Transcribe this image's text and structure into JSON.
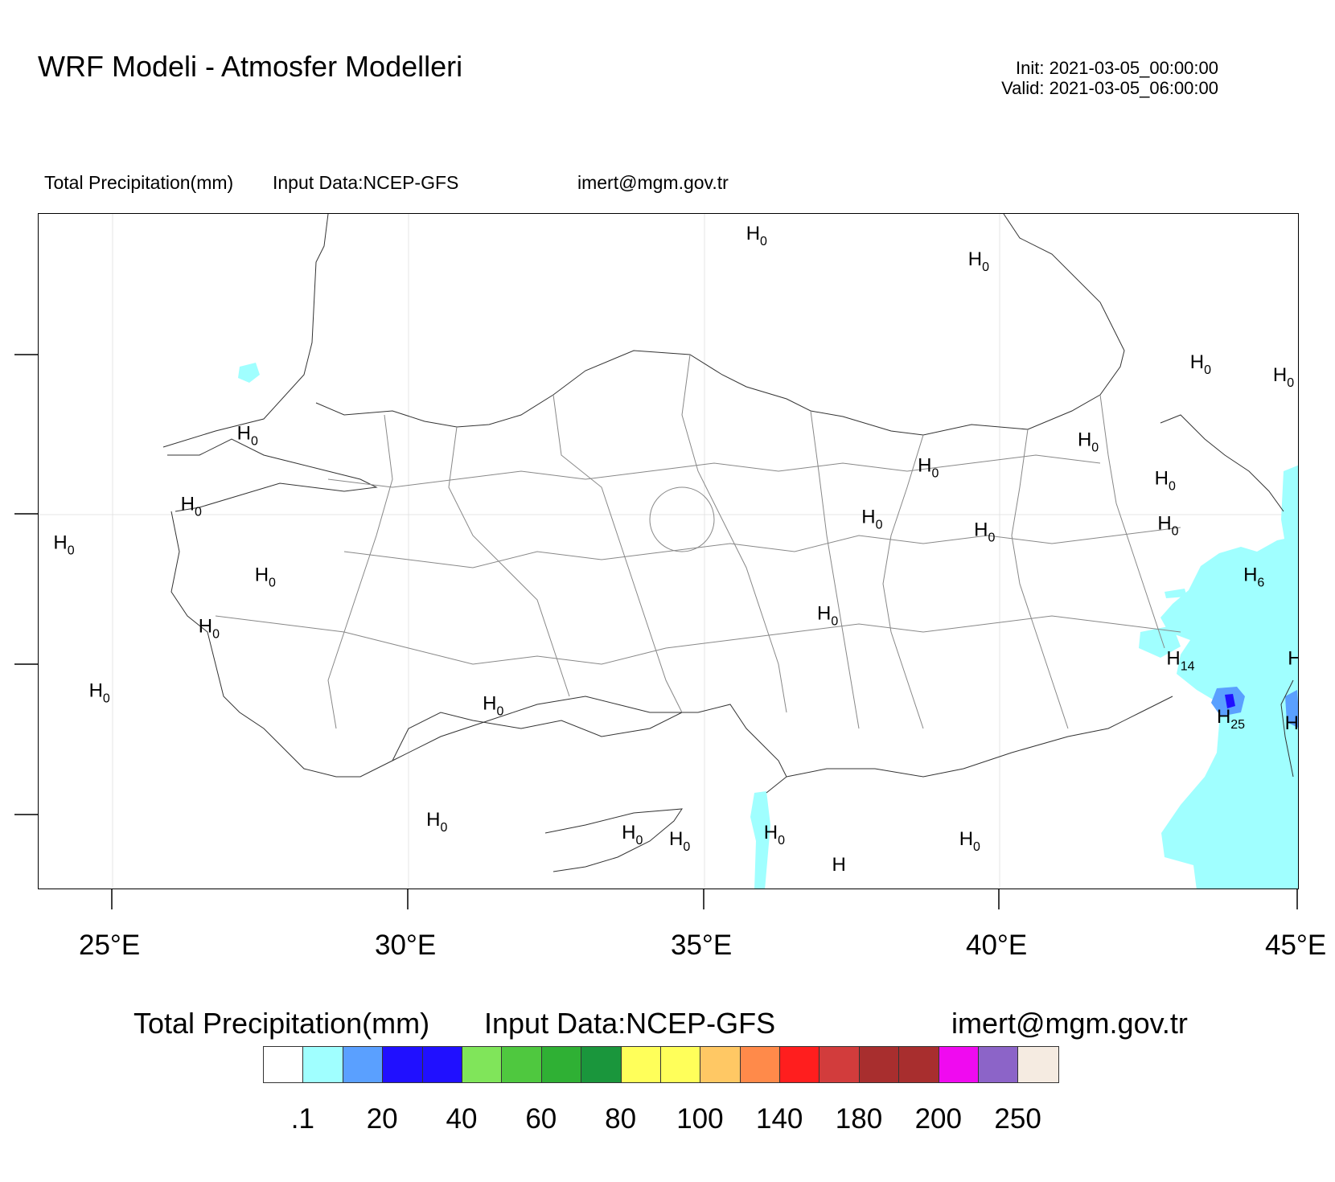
{
  "header": {
    "title": "WRF Modeli - Atmosfer Modelleri",
    "init": "Init: 2021-03-05_00:00:00",
    "valid": "Valid: 2021-03-05_06:00:00"
  },
  "subtitle": {
    "variable": "Total Precipitation(mm)",
    "input": "Input Data:NCEP-GFS",
    "contact": "imert@mgm.gov.tr"
  },
  "map": {
    "longitude_labels": [
      "25°E",
      "30°E",
      "35°E",
      "40°E",
      "45°E"
    ],
    "longitude_values": [
      25,
      30,
      35,
      40,
      45
    ],
    "lon_range": [
      23.75,
      45.05
    ],
    "precip_colors": {
      "light": "#a0ffff",
      "medium": "#5aa0ff",
      "heavy": "#2010ff"
    },
    "max_labels": [
      {
        "lon": 35.7,
        "lat": 43.5,
        "letter": "H",
        "value": "0"
      },
      {
        "lon": 39.45,
        "lat": 43.3,
        "letter": "H",
        "value": "0"
      },
      {
        "lon": 43.2,
        "lat": 42.5,
        "letter": "H",
        "value": "0"
      },
      {
        "lon": 44.6,
        "lat": 42.4,
        "letter": "H",
        "value": "0"
      },
      {
        "lon": 27.1,
        "lat": 41.95,
        "letter": "H",
        "value": "0"
      },
      {
        "lon": 41.3,
        "lat": 41.9,
        "letter": "H",
        "value": "0"
      },
      {
        "lon": 38.6,
        "lat": 41.7,
        "letter": "H",
        "value": "0"
      },
      {
        "lon": 42.6,
        "lat": 41.6,
        "letter": "H",
        "value": "0"
      },
      {
        "lon": 26.15,
        "lat": 41.4,
        "letter": "H",
        "value": "0"
      },
      {
        "lon": 37.65,
        "lat": 41.3,
        "letter": "H",
        "value": "0"
      },
      {
        "lon": 39.55,
        "lat": 41.2,
        "letter": "H",
        "value": "0"
      },
      {
        "lon": 42.65,
        "lat": 41.25,
        "letter": "H",
        "value": "0"
      },
      {
        "lon": 24.0,
        "lat": 41.1,
        "letter": "H",
        "value": "0"
      },
      {
        "lon": 27.4,
        "lat": 40.85,
        "letter": "H",
        "value": "0"
      },
      {
        "lon": 44.1,
        "lat": 40.85,
        "letter": "H",
        "value": "6"
      },
      {
        "lon": 36.9,
        "lat": 40.55,
        "letter": "H",
        "value": "0"
      },
      {
        "lon": 26.45,
        "lat": 40.45,
        "letter": "H",
        "value": "0"
      },
      {
        "lon": 42.8,
        "lat": 40.2,
        "letter": "H",
        "value": "14"
      },
      {
        "lon": 44.85,
        "lat": 40.2,
        "letter": "H",
        "value": ""
      },
      {
        "lon": 24.6,
        "lat": 39.95,
        "letter": "H",
        "value": "0"
      },
      {
        "lon": 31.25,
        "lat": 39.85,
        "letter": "H",
        "value": "0"
      },
      {
        "lon": 43.65,
        "lat": 39.75,
        "letter": "H",
        "value": "25"
      },
      {
        "lon": 44.8,
        "lat": 39.7,
        "letter": "H",
        "value": ""
      },
      {
        "lon": 30.3,
        "lat": 38.95,
        "letter": "H",
        "value": "0"
      },
      {
        "lon": 33.6,
        "lat": 38.85,
        "letter": "H",
        "value": "0"
      },
      {
        "lon": 34.4,
        "lat": 38.8,
        "letter": "H",
        "value": "0"
      },
      {
        "lon": 36.0,
        "lat": 38.85,
        "letter": "H",
        "value": "0"
      },
      {
        "lon": 39.3,
        "lat": 38.8,
        "letter": "H",
        "value": "0"
      },
      {
        "lon": 37.15,
        "lat": 38.6,
        "letter": "H",
        "value": ""
      }
    ]
  },
  "legend": {
    "title_variable": "Total Precipitation(mm)",
    "title_input": "Input Data:NCEP-GFS",
    "title_contact": "imert@mgm.gov.tr",
    "colors": [
      "#ffffff",
      "#a0ffff",
      "#5aa0ff",
      "#2010ff",
      "#2010ff",
      "#80e55a",
      "#4fc83f",
      "#2fb034",
      "#1a963c",
      "#ffff5a",
      "#ffff5a",
      "#ffc864",
      "#ff8a4a",
      "#ff1e1e",
      "#d23c3c",
      "#a82e2e",
      "#a82e2e",
      "#f00af0",
      "#8c64c8",
      "#f5ebe1"
    ],
    "labels": [
      ".1",
      "20",
      "40",
      "60",
      "80",
      "100",
      "140",
      "180",
      "200",
      "250"
    ]
  }
}
